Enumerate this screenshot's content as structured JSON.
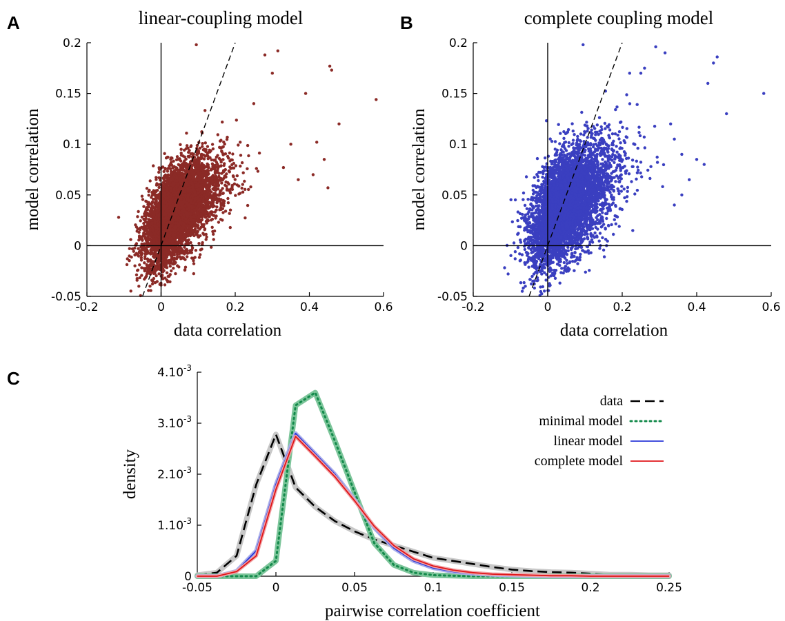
{
  "colors": {
    "panel_a_points": "#8b2a26",
    "panel_b_points": "#3a3fc0",
    "data": "#000000",
    "data_band": "#c8c8c8",
    "minimal_model": "#138a4b",
    "minimal_band": "#7cc59a",
    "linear_model": "#2a36d8",
    "linear_band": "#a9aeea",
    "complete_model": "#e0141a",
    "complete_band": "#f0a4a6"
  },
  "panels": {
    "a": {
      "letter": "A",
      "title": "linear-coupling model",
      "xlabel": "data correlation",
      "ylabel": "model correlation"
    },
    "b": {
      "letter": "B",
      "title": "complete coupling model",
      "xlabel": "data correlation",
      "ylabel": "model correlation"
    },
    "c": {
      "letter": "C",
      "xlabel": "pairwise correlation coefficient",
      "ylabel": "density"
    }
  },
  "chart_data": [
    {
      "type": "scatter",
      "panel": "A",
      "title": "linear-coupling model",
      "xlabel": "data correlation",
      "ylabel": "model correlation",
      "xlim": [
        -0.2,
        0.6
      ],
      "ylim": [
        -0.05,
        0.2
      ],
      "xticks": [
        "-0.2",
        "0",
        "0.2",
        "0.4",
        "0.6"
      ],
      "yticks": [
        "-0.05",
        "0",
        "0.05",
        "0.1",
        "0.15",
        "0.2"
      ],
      "reference_lines": [
        "x=0",
        "y=0",
        "y=x (dashed)"
      ],
      "cloud": {
        "n": 5200,
        "x_center": 0.04,
        "y_center": 0.035,
        "x_spread": 0.04,
        "y_spread": 0.025,
        "correlation": 0.55
      },
      "outliers": [
        [
          0.58,
          0.144
        ],
        [
          0.455,
          0.177
        ],
        [
          0.46,
          0.173
        ],
        [
          0.48,
          0.12
        ],
        [
          0.42,
          0.102
        ],
        [
          0.315,
          0.192
        ],
        [
          0.28,
          0.188
        ],
        [
          0.3,
          0.17
        ],
        [
          0.39,
          0.15
        ],
        [
          0.44,
          0.085
        ],
        [
          0.45,
          0.057
        ],
        [
          0.35,
          0.1
        ],
        [
          0.095,
          0.198
        ],
        [
          0.25,
          0.14
        ],
        [
          0.33,
          0.077
        ],
        [
          0.37,
          0.065
        ],
        [
          0.41,
          0.07
        ],
        [
          -0.06,
          -0.04
        ],
        [
          -0.045,
          -0.033
        ]
      ]
    },
    {
      "type": "scatter",
      "panel": "B",
      "title": "complete coupling model",
      "xlabel": "data correlation",
      "ylabel": "model correlation",
      "xlim": [
        -0.2,
        0.6
      ],
      "ylim": [
        -0.05,
        0.2
      ],
      "xticks": [
        "-0.2",
        "0",
        "0.2",
        "0.4",
        "0.6"
      ],
      "yticks": [
        "-0.05",
        "0",
        "0.05",
        "0.1",
        "0.15",
        "0.2"
      ],
      "reference_lines": [
        "x=0",
        "y=0",
        "y=x (dashed)"
      ],
      "cloud": {
        "n": 5200,
        "x_center": 0.045,
        "y_center": 0.04,
        "x_spread": 0.045,
        "y_spread": 0.03,
        "correlation": 0.52
      },
      "outliers": [
        [
          0.58,
          0.15
        ],
        [
          0.455,
          0.186
        ],
        [
          0.445,
          0.18
        ],
        [
          0.48,
          0.13
        ],
        [
          0.43,
          0.16
        ],
        [
          0.315,
          0.19
        ],
        [
          0.29,
          0.196
        ],
        [
          0.33,
          0.12
        ],
        [
          0.34,
          0.105
        ],
        [
          0.36,
          0.09
        ],
        [
          0.4,
          0.085
        ],
        [
          0.42,
          0.08
        ],
        [
          0.26,
          0.175
        ],
        [
          0.25,
          0.17
        ],
        [
          0.22,
          0.17
        ],
        [
          0.095,
          0.198
        ],
        [
          0.36,
          0.05
        ],
        [
          0.38,
          0.065
        ],
        [
          0.34,
          0.04
        ],
        [
          -0.06,
          -0.04
        ],
        [
          -0.04,
          -0.035
        ]
      ]
    },
    {
      "type": "line",
      "panel": "C",
      "xlabel": "pairwise correlation coefficient",
      "ylabel": "density",
      "xlim": [
        -0.05,
        0.25
      ],
      "ylim": [
        0,
        0.004
      ],
      "xticks": [
        "-0.05",
        "0",
        "0.05",
        "0.1",
        "0.15",
        "0.2",
        "0.25"
      ],
      "yticks": [
        {
          "base": "0",
          "exp": ""
        },
        {
          "base": "1.10",
          "exp": "-3"
        },
        {
          "base": "2.10",
          "exp": "-3"
        },
        {
          "base": "3.10",
          "exp": "-3"
        },
        {
          "base": "4.10",
          "exp": "-3"
        }
      ],
      "x": [
        -0.05,
        -0.0375,
        -0.025,
        -0.0125,
        0,
        0.0125,
        0.025,
        0.0375,
        0.05,
        0.0625,
        0.075,
        0.0875,
        0.1,
        0.1125,
        0.125,
        0.1375,
        0.15,
        0.1625,
        0.175,
        0.1875,
        0.2,
        0.2125,
        0.225,
        0.2375,
        0.25
      ],
      "series": [
        {
          "name": "data",
          "style": "dashed",
          "values": [
            2e-05,
            7e-05,
            0.0004,
            0.0018,
            0.00278,
            0.00174,
            0.00136,
            0.00108,
            0.00088,
            0.00072,
            0.0006,
            0.00048,
            0.00036,
            0.0003,
            0.00024,
            0.00018,
            0.00013,
            0.0001,
            8e-05,
            7e-05,
            5e-05,
            3e-05,
            3e-05,
            2e-05,
            2e-05
          ]
        },
        {
          "name": "minimal model",
          "style": "dotted",
          "values": [
            0,
            0,
            0,
            0,
            0.0003,
            0.00335,
            0.0036,
            0.00265,
            0.00165,
            0.00065,
            0.00022,
            7e-05,
            2e-05,
            1e-05,
            0,
            0,
            0,
            0,
            0,
            0,
            0,
            0,
            0,
            0,
            0
          ]
        },
        {
          "name": "linear model",
          "style": "solid",
          "values": [
            0,
            0,
            0.0001,
            0.0005,
            0.0018,
            0.0028,
            0.0024,
            0.002,
            0.0015,
            0.00095,
            0.00055,
            0.0003,
            0.00016,
            9e-05,
            5e-05,
            3e-05,
            2e-05,
            1e-05,
            0,
            0,
            0,
            0,
            0,
            0,
            0
          ]
        },
        {
          "name": "complete model",
          "style": "solid",
          "values": [
            0,
            0,
            9e-05,
            0.0004,
            0.0017,
            0.00274,
            0.00235,
            0.00195,
            0.00148,
            0.00098,
            0.0006,
            0.00034,
            0.0002,
            0.00012,
            7e-05,
            4e-05,
            3e-05,
            2e-05,
            1e-05,
            1e-05,
            0,
            0,
            0,
            0,
            0
          ]
        }
      ],
      "legend": {
        "placement": "top-right",
        "entries": [
          "data",
          "minimal model",
          "linear model",
          "complete model"
        ]
      }
    }
  ]
}
